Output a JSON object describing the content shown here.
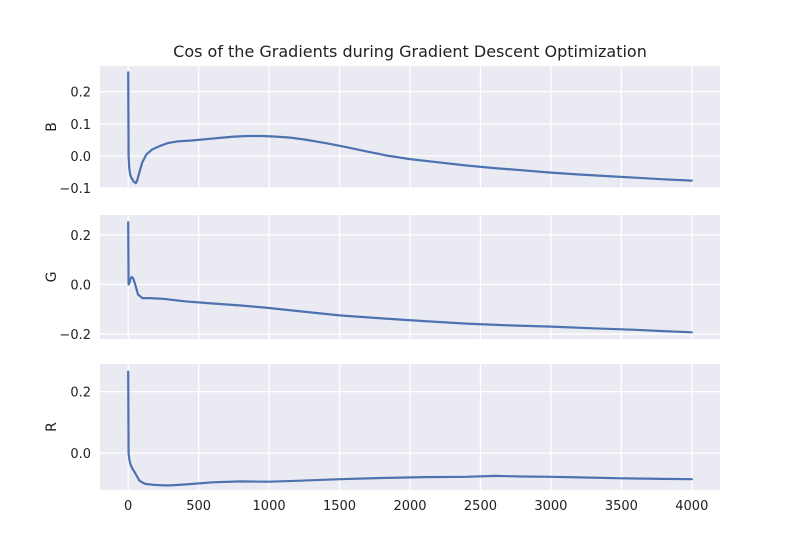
{
  "chart_data": {
    "type": "line",
    "title": "Cos of the Gradients during Gradient Descent Optimization",
    "xlim": [
      -200,
      4200
    ],
    "xticks": [
      0,
      500,
      1000,
      1500,
      2000,
      2500,
      3000,
      3500,
      4000
    ],
    "xtick_labels": [
      "0",
      "500",
      "1000",
      "1500",
      "2000",
      "2500",
      "3000",
      "3500",
      "4000"
    ],
    "grid": true,
    "line_color": "#4c72b0",
    "panel_bg": "#eaeaf2",
    "subplots": [
      {
        "ylabel": "B",
        "ylim": [
          -0.1,
          0.28
        ],
        "yticks": [
          -0.1,
          0.0,
          0.1,
          0.2
        ],
        "ytick_labels": [
          "−0.1",
          "0.0",
          "0.1",
          "0.2"
        ],
        "x": [
          0,
          3,
          8,
          15,
          25,
          40,
          55,
          65,
          80,
          100,
          130,
          170,
          220,
          280,
          350,
          450,
          550,
          650,
          750,
          850,
          950,
          1050,
          1150,
          1250,
          1400,
          1550,
          1700,
          1850,
          2000,
          2200,
          2400,
          2600,
          2800,
          3000,
          3200,
          3400,
          3600,
          3800,
          4000
        ],
        "y": [
          0.26,
          0.0,
          -0.04,
          -0.06,
          -0.07,
          -0.08,
          -0.085,
          -0.075,
          -0.05,
          -0.02,
          0.005,
          0.02,
          0.03,
          0.04,
          0.045,
          0.048,
          0.052,
          0.056,
          0.06,
          0.062,
          0.062,
          0.06,
          0.057,
          0.051,
          0.04,
          0.027,
          0.013,
          0.0,
          -0.01,
          -0.02,
          -0.03,
          -0.038,
          -0.045,
          -0.052,
          -0.058,
          -0.063,
          -0.068,
          -0.073,
          -0.077
        ]
      },
      {
        "ylabel": "G",
        "ylim": [
          -0.22,
          0.28
        ],
        "yticks": [
          -0.2,
          0.0,
          0.2
        ],
        "ytick_labels": [
          "−0.2",
          "0.0",
          "0.2"
        ],
        "x": [
          0,
          3,
          8,
          15,
          25,
          35,
          50,
          70,
          100,
          150,
          250,
          400,
          600,
          800,
          1000,
          1200,
          1500,
          1800,
          2100,
          2400,
          2700,
          3000,
          3300,
          3600,
          3800,
          4000
        ],
        "y": [
          0.25,
          0.0,
          0.005,
          0.02,
          0.03,
          0.025,
          0.0,
          -0.04,
          -0.055,
          -0.055,
          -0.058,
          -0.068,
          -0.077,
          -0.085,
          -0.095,
          -0.107,
          -0.125,
          -0.137,
          -0.148,
          -0.158,
          -0.165,
          -0.17,
          -0.177,
          -0.183,
          -0.188,
          -0.193
        ]
      },
      {
        "ylabel": "R",
        "ylim": [
          -0.12,
          0.29
        ],
        "yticks": [
          0.0,
          0.2
        ],
        "ytick_labels": [
          "0.0",
          "0.2"
        ],
        "x": [
          0,
          3,
          8,
          15,
          30,
          50,
          80,
          120,
          180,
          250,
          300,
          400,
          600,
          800,
          1000,
          1200,
          1500,
          1800,
          2100,
          2400,
          2600,
          2800,
          3000,
          3200,
          3500,
          3800,
          4000
        ],
        "y": [
          0.265,
          0.0,
          -0.02,
          -0.035,
          -0.05,
          -0.065,
          -0.09,
          -0.1,
          -0.103,
          -0.105,
          -0.105,
          -0.102,
          -0.095,
          -0.092,
          -0.093,
          -0.09,
          -0.085,
          -0.081,
          -0.078,
          -0.077,
          -0.074,
          -0.076,
          -0.077,
          -0.079,
          -0.082,
          -0.084,
          -0.085
        ]
      }
    ]
  }
}
